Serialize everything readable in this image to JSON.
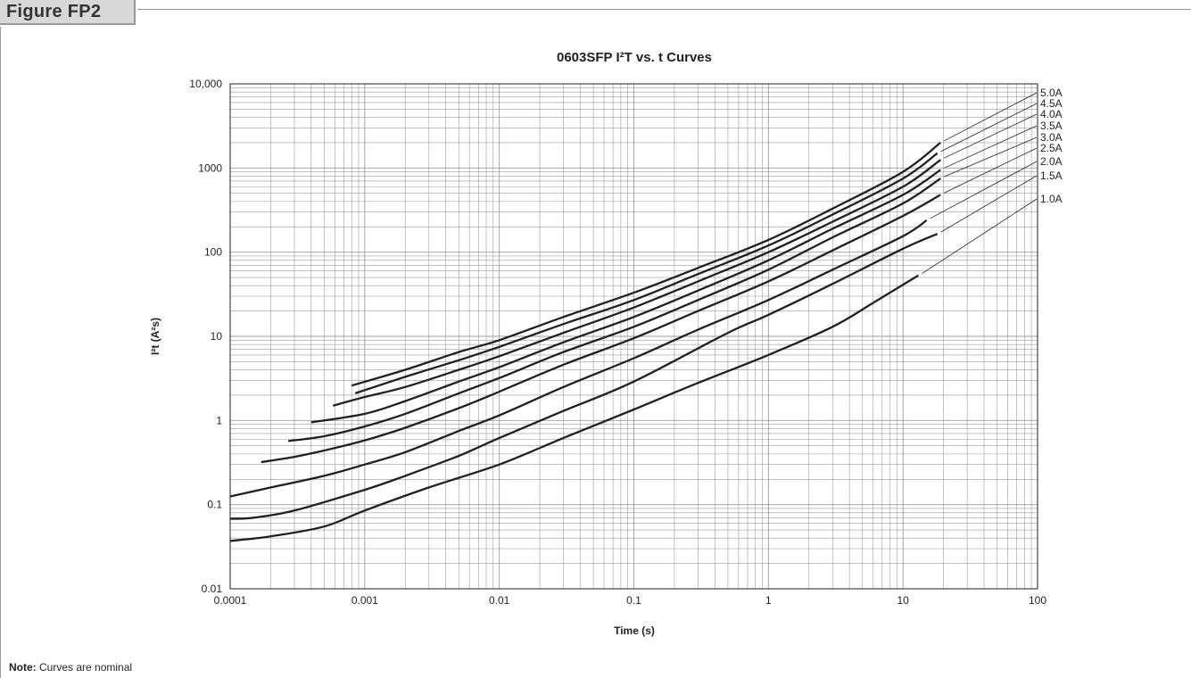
{
  "figure": {
    "label": "Figure FP2"
  },
  "note": {
    "label": "Note:",
    "text": " Curves are nominal"
  },
  "colors": {
    "curve": "#231f20",
    "grid": "#9d9d9d",
    "frame": "#9a9a9a",
    "tab_bg": "#d8d8d8"
  },
  "chart_data": {
    "type": "line",
    "title": "0603SFP I²T vs. t Curves",
    "xlabel": "Time (s)",
    "ylabel": "I²t (A²s)",
    "x_scale": "log",
    "y_scale": "log",
    "xlim": [
      0.0001,
      100
    ],
    "ylim": [
      0.01,
      10000
    ],
    "x_ticks": [
      {
        "value": 0.0001,
        "label": "0.0001"
      },
      {
        "value": 0.001,
        "label": "0.001"
      },
      {
        "value": 0.01,
        "label": "0.01"
      },
      {
        "value": 0.1,
        "label": "0.1"
      },
      {
        "value": 1,
        "label": "1"
      },
      {
        "value": 10,
        "label": "10"
      },
      {
        "value": 100,
        "label": "100"
      }
    ],
    "y_ticks": [
      {
        "value": 0.01,
        "label": "0.01"
      },
      {
        "value": 0.1,
        "label": "0.1"
      },
      {
        "value": 1,
        "label": "1"
      },
      {
        "value": 10,
        "label": "10"
      },
      {
        "value": 100,
        "label": "100"
      },
      {
        "value": 1000,
        "label": "1000"
      },
      {
        "value": 10000,
        "label": "10,000"
      }
    ],
    "grid": true,
    "legend": "curve labels at right end of each curve",
    "series": [
      {
        "name": "5.0A",
        "points": [
          [
            0.0008,
            2.6
          ],
          [
            0.002,
            4
          ],
          [
            0.005,
            6.5
          ],
          [
            0.01,
            9
          ],
          [
            0.03,
            17
          ],
          [
            0.1,
            33
          ],
          [
            0.3,
            65
          ],
          [
            1,
            140
          ],
          [
            3,
            330
          ],
          [
            10,
            900
          ],
          [
            19,
            2000
          ]
        ]
      },
      {
        "name": "4.5A",
        "points": [
          [
            0.00085,
            2.1
          ],
          [
            0.002,
            3.3
          ],
          [
            0.005,
            5.2
          ],
          [
            0.01,
            7.5
          ],
          [
            0.03,
            14
          ],
          [
            0.1,
            27
          ],
          [
            0.3,
            55
          ],
          [
            1,
            120
          ],
          [
            3,
            280
          ],
          [
            10,
            750
          ],
          [
            18,
            1500
          ]
        ]
      },
      {
        "name": "4.0A",
        "points": [
          [
            0.00058,
            1.5
          ],
          [
            0.001,
            1.9
          ],
          [
            0.002,
            2.5
          ],
          [
            0.005,
            4
          ],
          [
            0.01,
            5.8
          ],
          [
            0.03,
            11
          ],
          [
            0.1,
            22
          ],
          [
            0.3,
            45
          ],
          [
            1,
            100
          ],
          [
            3,
            230
          ],
          [
            10,
            600
          ],
          [
            19,
            1250
          ]
        ]
      },
      {
        "name": "3.5A",
        "points": [
          [
            0.0004,
            0.95
          ],
          [
            0.001,
            1.2
          ],
          [
            0.002,
            1.7
          ],
          [
            0.005,
            2.9
          ],
          [
            0.01,
            4.3
          ],
          [
            0.03,
            8.5
          ],
          [
            0.1,
            17
          ],
          [
            0.3,
            35
          ],
          [
            1,
            80
          ],
          [
            3,
            190
          ],
          [
            10,
            480
          ],
          [
            19,
            950
          ]
        ]
      },
      {
        "name": "3.0A",
        "points": [
          [
            0.00027,
            0.57
          ],
          [
            0.0005,
            0.65
          ],
          [
            0.001,
            0.85
          ],
          [
            0.002,
            1.2
          ],
          [
            0.005,
            2.1
          ],
          [
            0.01,
            3.2
          ],
          [
            0.03,
            6.5
          ],
          [
            0.1,
            13
          ],
          [
            0.3,
            27
          ],
          [
            1,
            62
          ],
          [
            3,
            150
          ],
          [
            10,
            380
          ],
          [
            19,
            750
          ]
        ]
      },
      {
        "name": "2.5A",
        "points": [
          [
            0.00017,
            0.32
          ],
          [
            0.0003,
            0.37
          ],
          [
            0.0005,
            0.44
          ],
          [
            0.001,
            0.58
          ],
          [
            0.002,
            0.82
          ],
          [
            0.005,
            1.4
          ],
          [
            0.01,
            2.2
          ],
          [
            0.03,
            4.6
          ],
          [
            0.1,
            9.5
          ],
          [
            0.3,
            20
          ],
          [
            1,
            45
          ],
          [
            3,
            105
          ],
          [
            10,
            270
          ],
          [
            19,
            480
          ]
        ]
      },
      {
        "name": "2.0A",
        "points": [
          [
            0.0001,
            0.125
          ],
          [
            0.0002,
            0.16
          ],
          [
            0.0005,
            0.22
          ],
          [
            0.001,
            0.3
          ],
          [
            0.002,
            0.42
          ],
          [
            0.005,
            0.75
          ],
          [
            0.01,
            1.15
          ],
          [
            0.03,
            2.5
          ],
          [
            0.1,
            5.5
          ],
          [
            0.3,
            12
          ],
          [
            1,
            27
          ],
          [
            3,
            62
          ],
          [
            10,
            155
          ],
          [
            15,
            240
          ]
        ]
      },
      {
        "name": "1.5A",
        "points": [
          [
            0.0001,
            0.068
          ],
          [
            0.00015,
            0.07
          ],
          [
            0.0003,
            0.085
          ],
          [
            0.001,
            0.15
          ],
          [
            0.002,
            0.22
          ],
          [
            0.005,
            0.38
          ],
          [
            0.01,
            0.62
          ],
          [
            0.03,
            1.3
          ],
          [
            0.1,
            2.9
          ],
          [
            0.5,
            11
          ],
          [
            1,
            18
          ],
          [
            3,
            42
          ],
          [
            10,
            110
          ],
          [
            18,
            165
          ]
        ]
      },
      {
        "name": "1.0A",
        "points": [
          [
            0.0001,
            0.037
          ],
          [
            0.0002,
            0.042
          ],
          [
            0.0005,
            0.055
          ],
          [
            0.001,
            0.085
          ],
          [
            0.003,
            0.16
          ],
          [
            0.01,
            0.3
          ],
          [
            0.03,
            0.62
          ],
          [
            0.1,
            1.35
          ],
          [
            0.3,
            2.8
          ],
          [
            1,
            6
          ],
          [
            3,
            13
          ],
          [
            6,
            25
          ],
          [
            13,
            53
          ]
        ]
      }
    ]
  }
}
